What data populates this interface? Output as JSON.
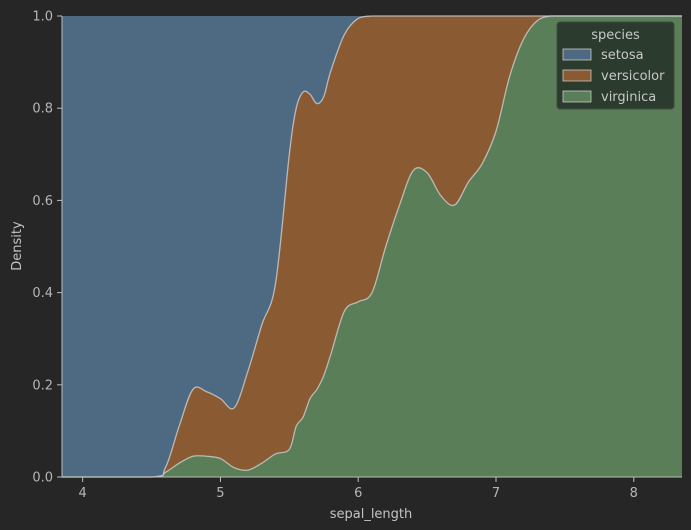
{
  "chart_data": {
    "type": "area",
    "stacking": "fill",
    "xlabel": "sepal_length",
    "ylabel": "Density",
    "xlim": [
      3.85,
      8.35
    ],
    "ylim": [
      0,
      1
    ],
    "xticks": [
      4,
      5,
      6,
      7,
      8
    ],
    "yticks": [
      0.0,
      0.2,
      0.4,
      0.6,
      0.8,
      1.0
    ],
    "ytick_labels": [
      "0.0",
      "0.2",
      "0.4",
      "0.6",
      "0.8",
      "1.0"
    ],
    "legend": {
      "title": "species",
      "position": "top-right"
    },
    "background": "#262626",
    "plot_background": "#262626",
    "boundary_color": "#c9c9c9",
    "x": [
      3.85,
      4.5,
      4.6,
      4.7,
      4.8,
      4.9,
      5.0,
      5.1,
      5.2,
      5.3,
      5.4,
      5.5,
      5.55,
      5.6,
      5.65,
      5.7,
      5.75,
      5.8,
      5.9,
      6.0,
      6.1,
      6.2,
      6.3,
      6.4,
      6.5,
      6.6,
      6.7,
      6.8,
      6.9,
      7.0,
      7.1,
      7.2,
      7.3,
      7.4,
      7.5,
      8.35
    ],
    "series": [
      {
        "name": "setosa",
        "color": "#4e6a82",
        "values": [
          1.0,
          1.0,
          0.98,
          0.89,
          0.81,
          0.815,
          0.83,
          0.85,
          0.77,
          0.67,
          0.58,
          0.3,
          0.2,
          0.165,
          0.17,
          0.19,
          0.175,
          0.14,
          0.04,
          0.005,
          0.0,
          0.0,
          0.0,
          0.0,
          0.0,
          0.0,
          0.0,
          0.0,
          0.0,
          0.0,
          0.0,
          0.0,
          0.0,
          0.0,
          0.0,
          0.0
        ]
      },
      {
        "name": "versicolor",
        "color": "#8a5a33",
        "values": [
          0.0,
          0.0,
          0.01,
          0.08,
          0.145,
          0.14,
          0.13,
          0.13,
          0.215,
          0.3,
          0.37,
          0.64,
          0.69,
          0.705,
          0.66,
          0.62,
          0.605,
          0.615,
          0.6,
          0.615,
          0.6,
          0.5,
          0.41,
          0.335,
          0.34,
          0.39,
          0.41,
          0.36,
          0.32,
          0.25,
          0.13,
          0.05,
          0.01,
          0.0,
          0.0,
          0.0
        ]
      },
      {
        "name": "virginica",
        "color": "#5a7e57",
        "values": [
          0.0,
          0.0,
          0.01,
          0.03,
          0.045,
          0.045,
          0.04,
          0.02,
          0.015,
          0.03,
          0.05,
          0.06,
          0.11,
          0.13,
          0.17,
          0.19,
          0.22,
          0.265,
          0.36,
          0.38,
          0.4,
          0.5,
          0.59,
          0.665,
          0.66,
          0.61,
          0.59,
          0.64,
          0.68,
          0.75,
          0.87,
          0.95,
          0.99,
          1.0,
          1.0,
          1.0
        ]
      }
    ]
  }
}
